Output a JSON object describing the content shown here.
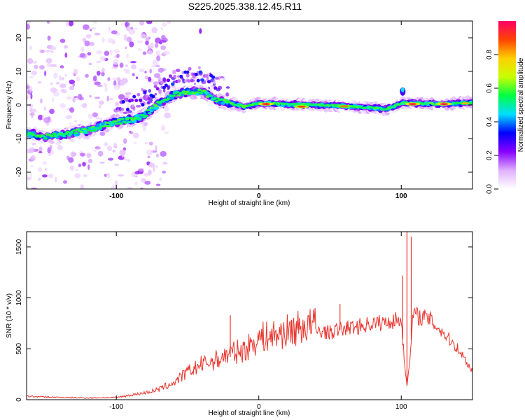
{
  "title": "S225.2025.338.12.45.R11",
  "chart_data": [
    {
      "type": "heatmap",
      "name": "spectrogram",
      "xlabel": "Height of straight line (km)",
      "ylabel": "Frequency (Hz)",
      "xlim": [
        -163,
        150
      ],
      "ylim": [
        -25,
        25
      ],
      "xticks": [
        -100,
        0,
        100
      ],
      "yticks": [
        -20,
        -10,
        0,
        10,
        20
      ],
      "colorbar": {
        "label": "Normalized spectral amplitude",
        "range": [
          0,
          1
        ],
        "ticks": [
          "0.0",
          "0.2",
          "0.4",
          "0.6",
          "0.8"
        ],
        "colors": [
          "#ffffff",
          "#e0b0ff",
          "#8800ff",
          "#0000ff",
          "#00ddff",
          "#00ff44",
          "#c8ff00",
          "#ffd000",
          "#ff4400",
          "#ff0066"
        ]
      },
      "ridge": {
        "x": [
          -163,
          -150,
          -140,
          -120,
          -100,
          -90,
          -80,
          -70,
          -60,
          -50,
          -40,
          -30,
          -20,
          -10,
          0,
          20,
          40,
          60,
          80,
          90,
          100,
          110,
          130,
          150
        ],
        "freq": [
          -8.5,
          -9.5,
          -9,
          -7.5,
          -5,
          -4.5,
          -3,
          0.5,
          3,
          4,
          4,
          1.5,
          0.5,
          -0.5,
          0.5,
          0.2,
          0,
          -0.3,
          -0.8,
          -1.2,
          0.5,
          0.5,
          0.3,
          0.8
        ]
      },
      "hotspots": [
        {
          "x": 5,
          "freq": 0.3,
          "amp": 0.95
        },
        {
          "x": 30,
          "freq": -0.5,
          "amp": 0.9
        },
        {
          "x": 60,
          "freq": -0.4,
          "amp": 0.85
        },
        {
          "x": 108,
          "freq": 0.3,
          "amp": 0.95
        },
        {
          "x": 130,
          "freq": 0.3,
          "amp": 0.95
        },
        {
          "x": 145,
          "freq": 0.5,
          "amp": 0.8
        }
      ]
    },
    {
      "type": "line",
      "name": "snr",
      "xlabel": "Height of straight line (km)",
      "ylabel": "SNR (10 * v/v)",
      "xlim": [
        -163,
        150
      ],
      "ylim": [
        0,
        1650
      ],
      "xticks": [
        -100,
        0,
        100
      ],
      "yticks": [
        0,
        500,
        1000,
        1500
      ],
      "color": "#e8352e",
      "series": {
        "name": "SNR",
        "x": [
          -163,
          -140,
          -120,
          -100,
          -80,
          -70,
          -60,
          -50,
          -40,
          -30,
          -20,
          -10,
          0,
          10,
          20,
          30,
          40,
          50,
          60,
          70,
          80,
          90,
          95,
          100,
          102,
          104,
          106,
          108,
          110,
          120,
          130,
          140,
          150
        ],
        "snr": [
          30,
          20,
          15,
          20,
          60,
          90,
          150,
          250,
          320,
          360,
          420,
          450,
          560,
          580,
          620,
          660,
          680,
          660,
          700,
          720,
          750,
          760,
          780,
          790,
          400,
          150,
          350,
          820,
          830,
          790,
          650,
          500,
          280
        ]
      },
      "spikes": [
        {
          "x": -20,
          "snr": 830
        },
        {
          "x": 57,
          "snr": 940
        },
        {
          "x": 101,
          "snr": 1220
        },
        {
          "x": 104,
          "snr": 1650
        },
        {
          "x": 107,
          "snr": 1600
        }
      ]
    }
  ]
}
